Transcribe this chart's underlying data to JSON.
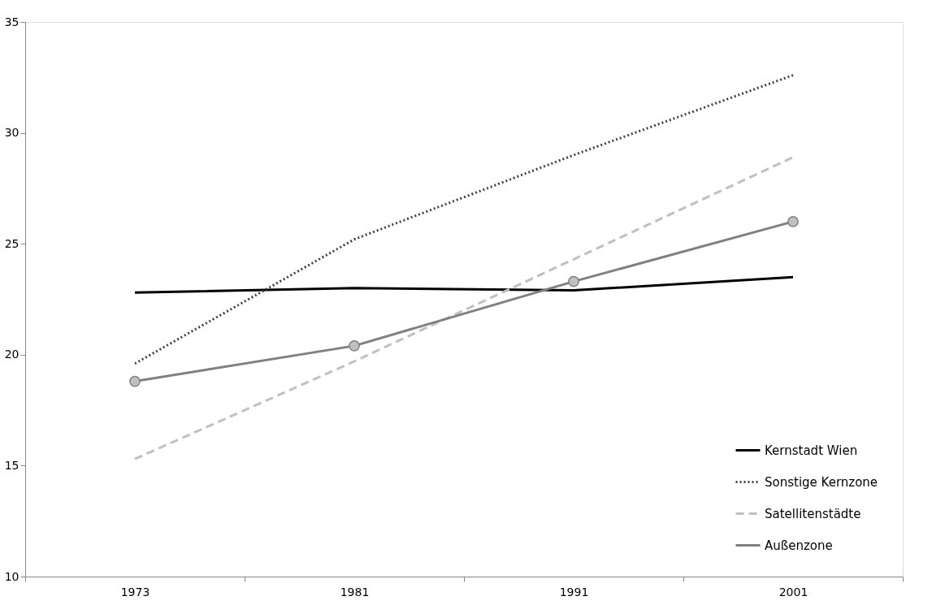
{
  "chart_data": {
    "type": "line",
    "categories": [
      "1973",
      "1981",
      "1991",
      "2001"
    ],
    "series": [
      {
        "name": "Kernstadt Wien",
        "color": "#000000",
        "line_style": "solid",
        "marker": "none",
        "values": [
          22.8,
          23.0,
          22.9,
          23.5
        ]
      },
      {
        "name": "Sonstige Kernzone",
        "color": "#404040",
        "line_style": "dotted",
        "marker": "none",
        "values": [
          19.6,
          25.2,
          29.0,
          32.6
        ]
      },
      {
        "name": "Satellitenstädte",
        "color": "#c0c0c0",
        "line_style": "dashed",
        "marker": "none",
        "values": [
          15.3,
          19.7,
          24.3,
          28.9
        ]
      },
      {
        "name": "Außenzone",
        "color": "#808080",
        "line_style": "solid",
        "marker": "circle",
        "values": [
          18.8,
          20.4,
          23.3,
          26.0
        ]
      }
    ],
    "ylim": [
      10,
      35
    ],
    "yticks": [
      10,
      15,
      20,
      25,
      30,
      35
    ],
    "grid": false,
    "legend": "bottom right"
  }
}
